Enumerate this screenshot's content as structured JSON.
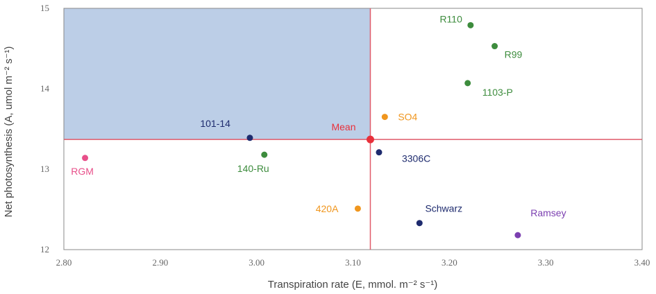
{
  "chart_data": {
    "type": "scatter",
    "title": "",
    "xlabel": "Transpiration rate (E, mmol. m⁻² s⁻¹)",
    "ylabel": "Net photosynthesis (A, umol m⁻² s⁻¹)",
    "xlim": [
      2.8,
      3.4
    ],
    "ylim": [
      12,
      15
    ],
    "xticks": [
      "2.80",
      "2.90",
      "3.00",
      "3.10",
      "3.20",
      "3.30",
      "3.40"
    ],
    "yticks": [
      "15",
      "14",
      "13",
      "12"
    ],
    "grid": false,
    "mean": {
      "name": "Mean",
      "x": 3.118,
      "y": 13.37,
      "color": "#e8303a"
    },
    "highlight_region": {
      "x": [
        2.8,
        3.118
      ],
      "y": [
        13.37,
        15
      ],
      "color": "#b8cbe6"
    },
    "reference_line_color": "#e05a6a",
    "points": [
      {
        "name": "R110",
        "x": 3.222,
        "y": 14.79,
        "color": "#3d8c3d"
      },
      {
        "name": "R99",
        "x": 3.247,
        "y": 14.53,
        "color": "#3d8c3d"
      },
      {
        "name": "1103-P",
        "x": 3.219,
        "y": 14.07,
        "color": "#3d8c3d"
      },
      {
        "name": "SO4",
        "x": 3.133,
        "y": 13.65,
        "color": "#f0961e"
      },
      {
        "name": "101-14",
        "x": 2.993,
        "y": 13.39,
        "color": "#1e2b6e"
      },
      {
        "name": "3306C",
        "x": 3.127,
        "y": 13.21,
        "color": "#1e2b6e"
      },
      {
        "name": "140-Ru",
        "x": 3.008,
        "y": 13.18,
        "color": "#3d8c3d"
      },
      {
        "name": "RGM",
        "x": 2.822,
        "y": 13.14,
        "color": "#e8508a"
      },
      {
        "name": "420A",
        "x": 3.105,
        "y": 12.51,
        "color": "#f0961e"
      },
      {
        "name": "Schwarz",
        "x": 3.169,
        "y": 12.33,
        "color": "#1e2b6e"
      },
      {
        "name": "Ramsey",
        "x": 3.271,
        "y": 12.18,
        "color": "#7b3fb0"
      }
    ]
  }
}
